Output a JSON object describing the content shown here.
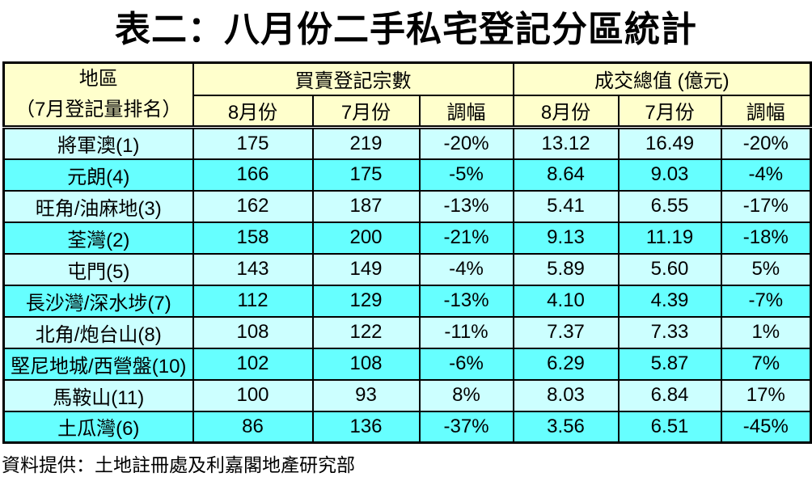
{
  "title": "表二：八月份二手私宅登記分區統計",
  "source_note": "資料提供：土地註冊處及利嘉閣地產研究部",
  "header": {
    "district_line1": "地區",
    "district_line2": "（7月登記量排名）",
    "group_count": "買賣登記宗數",
    "group_value": "成交總值 (億元)",
    "sub_aug": "8月份",
    "sub_jul": "7月份",
    "sub_change": "調幅"
  },
  "colors": {
    "header_bg": "#FFFFCC",
    "row_light": "#CCFFFF",
    "row_bright": "#66FFFF",
    "border": "#000000",
    "text": "#000000"
  },
  "chart_data": {
    "type": "table",
    "title": "表二：八月份二手私宅登記分區統計",
    "column_groups": [
      "地區（7月登記量排名）",
      "買賣登記宗數",
      "成交總值 (億元)"
    ],
    "columns": [
      "地區（7月登記量排名）",
      "買賣登記宗數 8月份",
      "買賣登記宗數 7月份",
      "買賣登記宗數 調幅",
      "成交總值(億元) 8月份",
      "成交總值(億元) 7月份",
      "成交總值(億元) 調幅"
    ],
    "rows": [
      [
        "將軍澳(1)",
        "175",
        "219",
        "-20%",
        "13.12",
        "16.49",
        "-20%"
      ],
      [
        "元朗(4)",
        "166",
        "175",
        "-5%",
        "8.64",
        "9.03",
        "-4%"
      ],
      [
        "旺角/油麻地(3)",
        "162",
        "187",
        "-13%",
        "5.41",
        "6.55",
        "-17%"
      ],
      [
        "荃灣(2)",
        "158",
        "200",
        "-21%",
        "9.13",
        "11.19",
        "-18%"
      ],
      [
        "屯門(5)",
        "143",
        "149",
        "-4%",
        "5.89",
        "5.60",
        "5%"
      ],
      [
        "長沙灣/深水埗(7)",
        "112",
        "129",
        "-13%",
        "4.10",
        "4.39",
        "-7%"
      ],
      [
        "北角/炮台山(8)",
        "108",
        "122",
        "-11%",
        "7.37",
        "7.33",
        "1%"
      ],
      [
        "堅尼地城/西營盤(10)",
        "102",
        "108",
        "-6%",
        "6.29",
        "5.87",
        "7%"
      ],
      [
        "馬鞍山(11)",
        "100",
        "93",
        "8%",
        "8.03",
        "6.84",
        "17%"
      ],
      [
        "土瓜灣(6)",
        "86",
        "136",
        "-37%",
        "3.56",
        "6.51",
        "-45%"
      ]
    ],
    "source": "資料提供：土地註冊處及利嘉閣地產研究部"
  }
}
